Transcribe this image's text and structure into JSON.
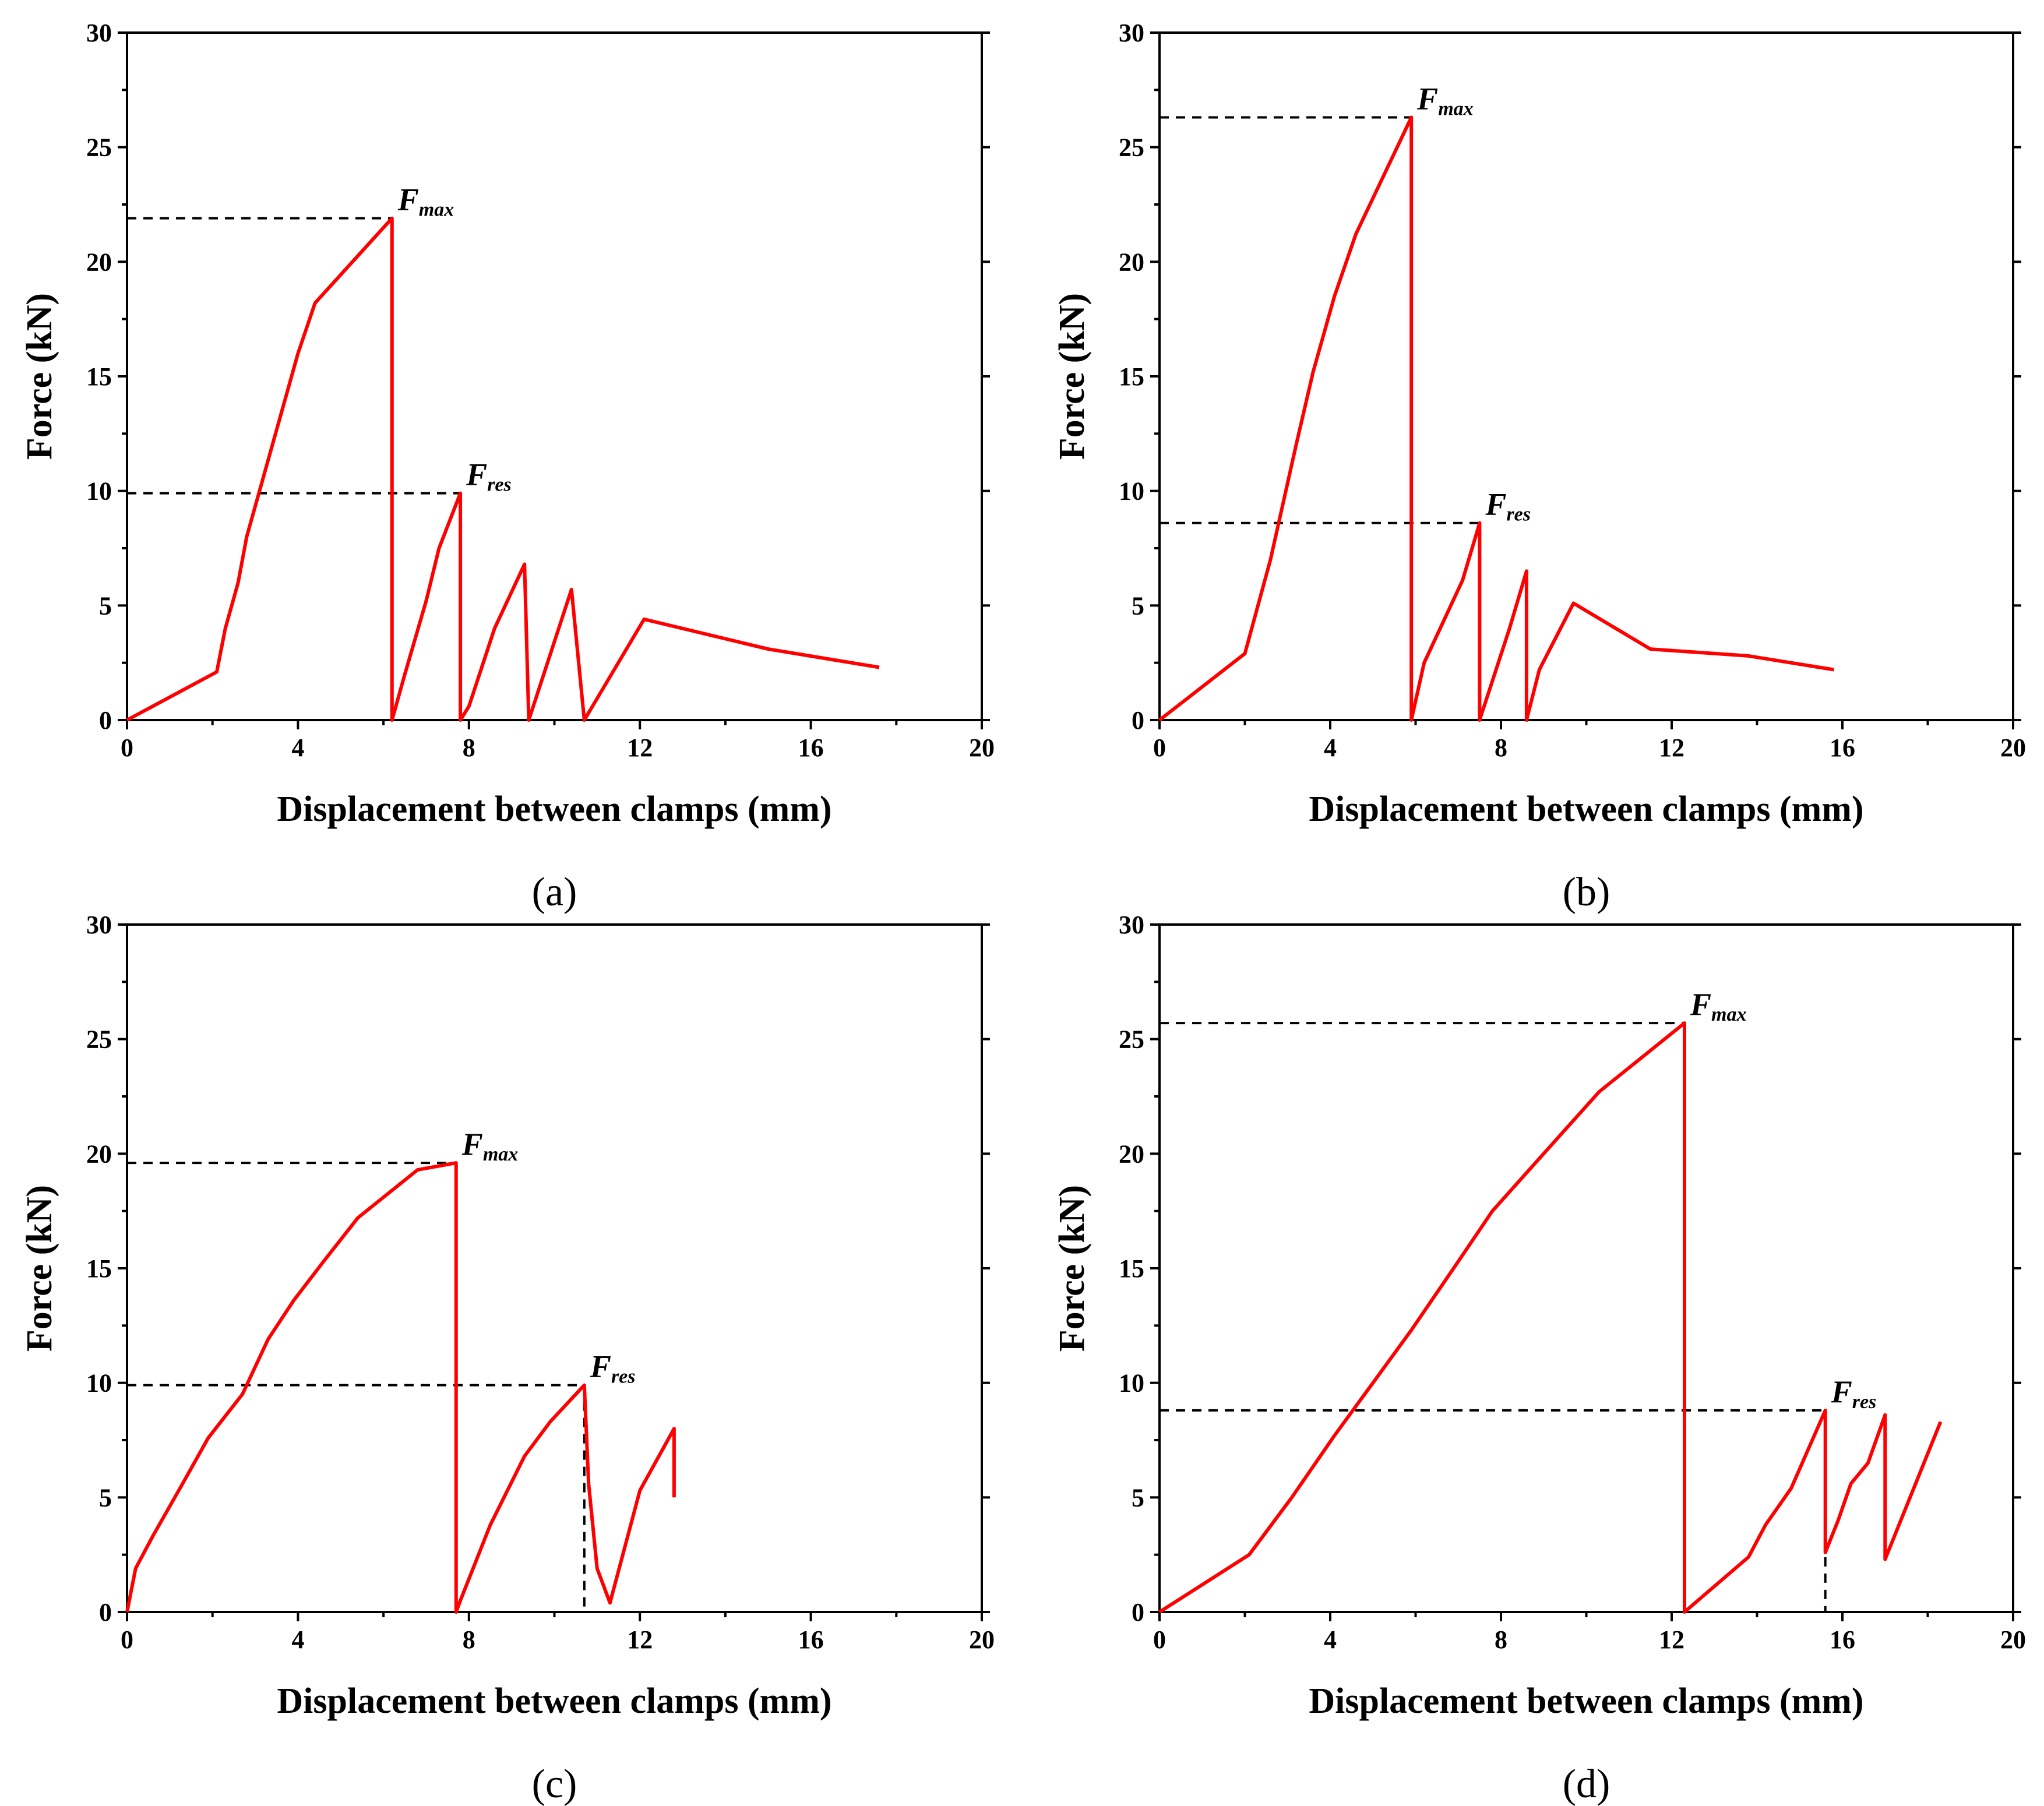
{
  "chart_data": [
    {
      "type": "line",
      "panel_label": "(a)",
      "xlabel": "Displacement between clamps (mm)",
      "ylabel": "Force (kN)",
      "xlim": [
        0,
        20
      ],
      "ylim": [
        0,
        30
      ],
      "xticks": [
        0,
        4,
        8,
        12,
        16,
        20
      ],
      "yticks": [
        0,
        5,
        10,
        15,
        20,
        25,
        30
      ],
      "grid": false,
      "series": [
        {
          "name": "Force",
          "color": "#ff0000",
          "x": [
            0,
            2.1,
            2.3,
            2.6,
            2.8,
            3.1,
            3.4,
            3.7,
            4.0,
            4.4,
            6.2,
            6.2,
            6.5,
            7.0,
            7.3,
            7.8,
            7.8,
            8.0,
            8.6,
            9.3,
            9.4,
            10.4,
            10.7,
            12.1,
            15.0,
            17.6
          ],
          "y": [
            0,
            2.1,
            4.0,
            6.0,
            8.0,
            10.0,
            12.0,
            14.0,
            16.0,
            18.2,
            21.9,
            0,
            2.0,
            5.2,
            7.5,
            9.9,
            0,
            0.6,
            4.0,
            6.8,
            0,
            5.7,
            0,
            4.4,
            3.1,
            2.3
          ]
        }
      ],
      "annotations": [
        {
          "main": "F",
          "sub": "max",
          "x": 6.2,
          "y": 21.9,
          "dashed_to_x": false
        },
        {
          "main": "F",
          "sub": "res",
          "x": 7.8,
          "y": 9.9,
          "dashed_to_x": true
        }
      ]
    },
    {
      "type": "line",
      "panel_label": "(b)",
      "xlabel": "Displacement between clamps (mm)",
      "ylabel": "Force (kN)",
      "xlim": [
        0,
        20
      ],
      "ylim": [
        0,
        30
      ],
      "xticks": [
        0,
        4,
        8,
        12,
        16,
        20
      ],
      "yticks": [
        0,
        5,
        10,
        15,
        20,
        25,
        30
      ],
      "grid": false,
      "series": [
        {
          "name": "Force",
          "color": "#ff0000",
          "x": [
            0,
            2.0,
            2.6,
            3.2,
            3.6,
            4.1,
            4.6,
            5.9,
            5.9,
            6.2,
            7.1,
            7.5,
            7.5,
            8.2,
            8.6,
            8.6,
            8.9,
            9.7,
            11.5,
            13.8,
            15.8
          ],
          "y": [
            0,
            2.9,
            7.0,
            12.0,
            15.2,
            18.5,
            21.2,
            26.3,
            0,
            2.5,
            6.1,
            8.6,
            0,
            4.0,
            6.5,
            0,
            2.2,
            5.1,
            3.1,
            2.8,
            2.2
          ]
        }
      ],
      "annotations": [
        {
          "main": "F",
          "sub": "max",
          "x": 5.9,
          "y": 26.3,
          "dashed_to_x": true
        },
        {
          "main": "F",
          "sub": "res",
          "x": 7.5,
          "y": 8.6,
          "dashed_to_x": false
        }
      ]
    },
    {
      "type": "line",
      "panel_label": "(c)",
      "xlabel": "Displacement between clamps (mm)",
      "ylabel": "Force (kN)",
      "xlim": [
        0,
        20
      ],
      "ylim": [
        0,
        30
      ],
      "xticks": [
        0,
        4,
        8,
        12,
        16,
        20
      ],
      "yticks": [
        0,
        5,
        10,
        15,
        20,
        25,
        30
      ],
      "grid": false,
      "series": [
        {
          "name": "Force",
          "color": "#ff0000",
          "x": [
            0,
            0.2,
            0.6,
            1.3,
            1.9,
            2.7,
            3.3,
            3.9,
            4.6,
            5.4,
            6.2,
            6.8,
            7.7,
            7.7,
            7.8,
            8.5,
            9.3,
            9.9,
            10.4,
            10.7,
            10.8,
            11.0,
            11.3,
            12.0,
            12.8,
            12.8
          ],
          "y": [
            0,
            1.9,
            3.3,
            5.6,
            7.6,
            9.5,
            11.9,
            13.6,
            15.3,
            17.2,
            18.4,
            19.3,
            19.6,
            0,
            0.5,
            3.8,
            6.8,
            8.3,
            9.3,
            9.9,
            5.6,
            1.9,
            0.4,
            5.3,
            8.0,
            5.0
          ]
        }
      ],
      "annotations": [
        {
          "main": "F",
          "sub": "max",
          "x": 7.7,
          "y": 19.6,
          "dashed_to_x": false
        },
        {
          "main": "F",
          "sub": "res",
          "x": 10.7,
          "y": 9.9,
          "dashed_to_x": true
        }
      ]
    },
    {
      "type": "line",
      "panel_label": "(d)",
      "xlabel": "Displacement between clamps (mm)",
      "ylabel": "Force (kN)",
      "xlim": [
        0,
        20
      ],
      "ylim": [
        0,
        30
      ],
      "xticks": [
        0,
        4,
        8,
        12,
        16,
        20
      ],
      "yticks": [
        0,
        5,
        10,
        15,
        20,
        25,
        30
      ],
      "grid": false,
      "series": [
        {
          "name": "Force",
          "color": "#ff0000",
          "x": [
            0,
            2.1,
            3.1,
            4.1,
            5.0,
            5.9,
            7.0,
            7.8,
            9.0,
            10.3,
            11.5,
            12.3,
            12.3,
            13.8,
            14.2,
            14.8,
            15.2,
            15.6,
            15.6,
            15.9,
            16.2,
            16.6,
            17.0,
            17.0,
            18.3
          ],
          "y": [
            0,
            2.5,
            5.0,
            7.7,
            10.0,
            12.3,
            15.3,
            17.5,
            20.0,
            22.7,
            24.5,
            25.7,
            0,
            2.4,
            3.8,
            5.4,
            7.1,
            8.8,
            2.6,
            4.0,
            5.6,
            6.5,
            8.6,
            2.3,
            8.3
          ]
        }
      ],
      "annotations": [
        {
          "main": "F",
          "sub": "max",
          "x": 12.3,
          "y": 25.7,
          "dashed_to_x": false
        },
        {
          "main": "F",
          "sub": "res",
          "x": 15.6,
          "y": 8.8,
          "dashed_to_x": true
        }
      ]
    }
  ]
}
